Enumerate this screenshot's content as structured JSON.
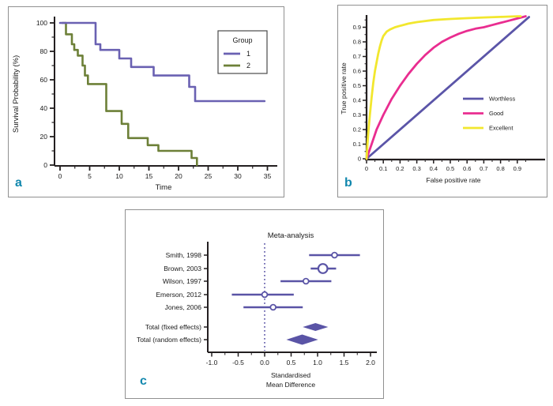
{
  "figure": {
    "panels": [
      {
        "id": "a",
        "letter": "a"
      },
      {
        "id": "b",
        "letter": "b"
      },
      {
        "id": "c",
        "letter": "c"
      }
    ]
  },
  "colors": {
    "panel_letter": "#1187ad",
    "axis": "#231f20",
    "text": "#1a1a1a",
    "panel_border": "#909090",
    "km_group1": "#6a61b2",
    "km_group2": "#6d8038",
    "roc_worthless": "#5b55a8",
    "roc_good": "#e92d90",
    "roc_excellent": "#f2e72e",
    "forest": "#5a54a6"
  },
  "chart_data": [
    {
      "id": "km",
      "type": "line",
      "subtype": "kaplan-meier-step",
      "panel": "a",
      "xlabel": "Time",
      "ylabel": "Survival Probability (%)",
      "xlim": [
        0,
        35
      ],
      "ylim": [
        0,
        100
      ],
      "x_ticks": [
        0,
        5,
        10,
        15,
        20,
        25,
        30,
        35
      ],
      "x_tick_labels": [
        "0",
        "5",
        "10",
        "15",
        "20",
        "25",
        "30",
        "35"
      ],
      "y_ticks": [
        0,
        20,
        40,
        60,
        80,
        100
      ],
      "y_tick_labels": [
        "0",
        "20",
        "40",
        "60",
        "80",
        "100"
      ],
      "minor_ticks": true,
      "grid": false,
      "legend_title": "Group",
      "legend_position": "upper-right-box",
      "series": [
        {
          "name": "1",
          "color": "#6a61b2",
          "points": [
            [
              0,
              100
            ],
            [
              6,
              100
            ],
            [
              6,
              85
            ],
            [
              6.8,
              85
            ],
            [
              6.8,
              81
            ],
            [
              10,
              81
            ],
            [
              10,
              75
            ],
            [
              12,
              75
            ],
            [
              12,
              69
            ],
            [
              15.8,
              69
            ],
            [
              15.8,
              63
            ],
            [
              21.8,
              63
            ],
            [
              21.8,
              55
            ],
            [
              22.8,
              55
            ],
            [
              22.8,
              45
            ],
            [
              34.5,
              45
            ]
          ]
        },
        {
          "name": "2",
          "color": "#6d8038",
          "points": [
            [
              0.4,
              100
            ],
            [
              1,
              100
            ],
            [
              1,
              92
            ],
            [
              2,
              92
            ],
            [
              2,
              85
            ],
            [
              2.4,
              85
            ],
            [
              2.4,
              81
            ],
            [
              3,
              81
            ],
            [
              3,
              77
            ],
            [
              3.8,
              77
            ],
            [
              3.8,
              70
            ],
            [
              4.2,
              70
            ],
            [
              4.2,
              63
            ],
            [
              4.7,
              63
            ],
            [
              4.7,
              57
            ],
            [
              7.8,
              57
            ],
            [
              7.8,
              38
            ],
            [
              10.4,
              38
            ],
            [
              10.4,
              29
            ],
            [
              11.5,
              29
            ],
            [
              11.5,
              19
            ],
            [
              14.8,
              19
            ],
            [
              14.8,
              14
            ],
            [
              16.6,
              14
            ],
            [
              16.6,
              10
            ],
            [
              22.2,
              10
            ],
            [
              22.2,
              5
            ],
            [
              23.1,
              5
            ],
            [
              23.1,
              0
            ]
          ]
        }
      ]
    },
    {
      "id": "roc",
      "type": "line",
      "subtype": "roc-curves",
      "panel": "b",
      "xlabel": "False positive rate",
      "ylabel": "True positive rate",
      "xlim": [
        0,
        1
      ],
      "ylim": [
        0,
        1
      ],
      "x_ticks": [
        0,
        0.1,
        0.2,
        0.3,
        0.4,
        0.5,
        0.6,
        0.7,
        0.8,
        0.9
      ],
      "x_tick_labels": [
        "0",
        "0.1",
        "0.2",
        "0.3",
        "0.4",
        "0.5",
        "0.6",
        "0.7",
        "0.8",
        "0.9"
      ],
      "y_ticks": [
        0,
        0.1,
        0.2,
        0.3,
        0.4,
        0.5,
        0.6,
        0.7,
        0.8,
        0.9
      ],
      "y_tick_labels": [
        "0",
        "0.1",
        "0.2",
        "0.3",
        "0.4",
        "0.5",
        "0.6",
        "0.7",
        "0.8",
        "0.9"
      ],
      "minor_ticks": true,
      "grid": false,
      "legend_position": "middle-right-lines",
      "series": [
        {
          "name": "Worthless",
          "color": "#5b55a8",
          "points": [
            [
              0,
              0
            ],
            [
              0.97,
              0.97
            ]
          ]
        },
        {
          "name": "Good",
          "color": "#e92d90",
          "points": [
            [
              0,
              0
            ],
            [
              0.03,
              0.1
            ],
            [
              0.06,
              0.2
            ],
            [
              0.1,
              0.3
            ],
            [
              0.15,
              0.41
            ],
            [
              0.2,
              0.5
            ],
            [
              0.25,
              0.58
            ],
            [
              0.3,
              0.65
            ],
            [
              0.35,
              0.71
            ],
            [
              0.4,
              0.76
            ],
            [
              0.45,
              0.8
            ],
            [
              0.5,
              0.83
            ],
            [
              0.55,
              0.855
            ],
            [
              0.6,
              0.875
            ],
            [
              0.65,
              0.89
            ],
            [
              0.7,
              0.9
            ],
            [
              0.75,
              0.915
            ],
            [
              0.8,
              0.93
            ],
            [
              0.85,
              0.945
            ],
            [
              0.9,
              0.96
            ],
            [
              0.95,
              0.975
            ]
          ]
        },
        {
          "name": "Excellent",
          "color": "#f2e72e",
          "points": [
            [
              0,
              0
            ],
            [
              0.005,
              0.1
            ],
            [
              0.012,
              0.2
            ],
            [
              0.02,
              0.3
            ],
            [
              0.03,
              0.42
            ],
            [
              0.04,
              0.52
            ],
            [
              0.05,
              0.6
            ],
            [
              0.06,
              0.66
            ],
            [
              0.07,
              0.72
            ],
            [
              0.08,
              0.77
            ],
            [
              0.09,
              0.81
            ],
            [
              0.1,
              0.84
            ],
            [
              0.12,
              0.87
            ],
            [
              0.14,
              0.885
            ],
            [
              0.17,
              0.9
            ],
            [
              0.2,
              0.91
            ],
            [
              0.25,
              0.925
            ],
            [
              0.3,
              0.935
            ],
            [
              0.4,
              0.95
            ],
            [
              0.5,
              0.957
            ],
            [
              0.6,
              0.962
            ],
            [
              0.7,
              0.967
            ],
            [
              0.8,
              0.971
            ],
            [
              0.9,
              0.975
            ],
            [
              0.92,
              0.975
            ]
          ]
        }
      ]
    },
    {
      "id": "forest",
      "type": "scatter",
      "subtype": "forest-plot",
      "panel": "c",
      "title": "Meta-analysis",
      "xlabel_lines": [
        "Standardised",
        "Mean Difference"
      ],
      "xlim": [
        -1,
        2
      ],
      "x_ticks": [
        -1.0,
        -0.5,
        0.0,
        0.5,
        1.0,
        1.5,
        2.0
      ],
      "x_tick_labels": [
        "-1.0",
        "-0.5",
        "0.0",
        "0.5",
        "1.0",
        "1.5",
        "2.0"
      ],
      "zero_line": 0,
      "color": "#5a54a6",
      "studies": [
        {
          "label": "Smith, 1998",
          "estimate": 1.32,
          "ci": [
            0.84,
            1.8
          ],
          "marker": "circle",
          "size": "small"
        },
        {
          "label": "Brown, 2003",
          "estimate": 1.1,
          "ci": [
            0.87,
            1.35
          ],
          "marker": "circle",
          "size": "large"
        },
        {
          "label": "Wilson, 1997",
          "estimate": 0.78,
          "ci": [
            0.3,
            1.26
          ],
          "marker": "circle",
          "size": "small"
        },
        {
          "label": "Emerson, 2012",
          "estimate": 0.0,
          "ci": [
            -0.62,
            0.55
          ],
          "marker": "circle",
          "size": "small"
        },
        {
          "label": "Jones, 2006",
          "estimate": 0.16,
          "ci": [
            -0.4,
            0.72
          ],
          "marker": "circle",
          "size": "small"
        },
        {
          "label": "Total (fixed effects)",
          "estimate": 0.96,
          "ci": [
            0.72,
            1.2
          ],
          "marker": "diamond"
        },
        {
          "label": "Total (random effects)",
          "estimate": 0.71,
          "ci": [
            0.41,
            1.01
          ],
          "marker": "diamond"
        }
      ]
    }
  ]
}
